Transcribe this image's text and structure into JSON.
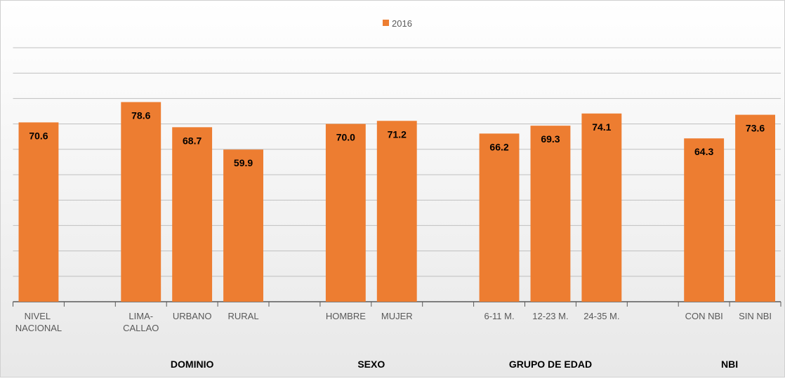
{
  "chart_data": {
    "type": "bar",
    "series": [
      {
        "name": "2016",
        "color": "#ed7d31",
        "values": [
          70.6,
          null,
          78.6,
          68.7,
          59.9,
          null,
          70.0,
          71.2,
          null,
          66.2,
          69.3,
          74.1,
          null,
          64.3,
          73.6
        ],
        "value_labels": [
          "70.6",
          null,
          "78.6",
          "68.7",
          "59.9",
          null,
          "70.0",
          "71.2",
          null,
          "66.2",
          "69.3",
          "74.1",
          null,
          "64.3",
          "73.6"
        ]
      }
    ],
    "categories": [
      "NIVEL NACIONAL",
      null,
      "LIMA-CALLAO",
      "URBANO",
      "RURAL",
      null,
      "HOMBRE",
      "MUJER",
      null,
      "6-11 M.",
      "12-23 M.",
      "24-35 M.",
      null,
      "CON NBI",
      "SIN NBI"
    ],
    "category_groups": [
      null,
      null,
      "DOMINIO",
      "DOMINIO",
      "DOMINIO",
      null,
      "SEXO",
      "SEXO",
      null,
      "GRUPO DE EDAD",
      "GRUPO DE EDAD",
      "GRUPO DE EDAD",
      null,
      "NBI",
      "NBI"
    ],
    "ylim": [
      0,
      100
    ],
    "yticks": [
      0,
      10,
      20,
      30,
      40,
      50,
      60,
      70,
      80,
      90,
      100
    ],
    "grid": true,
    "legend": "top"
  }
}
